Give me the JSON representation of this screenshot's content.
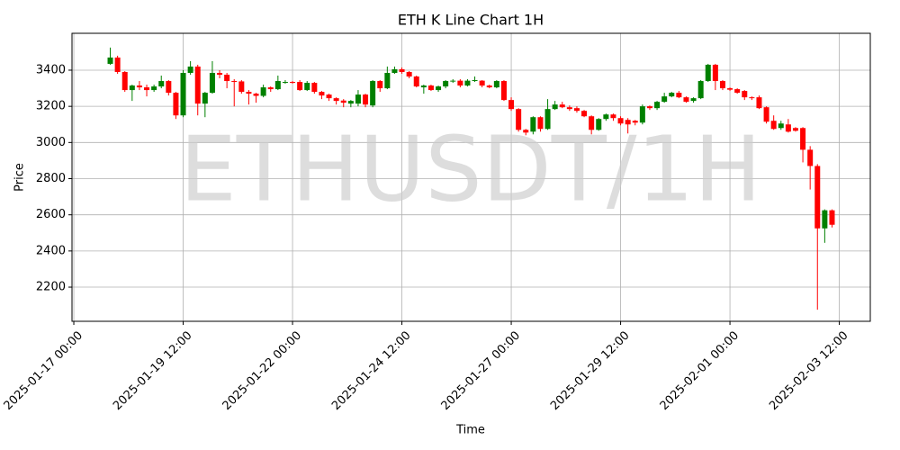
{
  "chart_data": {
    "type": "candlestick",
    "title": "ETH K Line Chart 1H",
    "watermark": "ETHUSDT/1H",
    "x_label": "Time",
    "y_label": "Price",
    "grid": true,
    "up_color": "#008000",
    "down_color": "#ff0000",
    "xlim": [
      "2025-01-16 23:00",
      "2025-02-04 05:00"
    ],
    "xticks": [
      "2025-01-17 00:00",
      "2025-01-19 12:00",
      "2025-01-22 00:00",
      "2025-01-24 12:00",
      "2025-01-27 00:00",
      "2025-01-29 12:00",
      "2025-02-01 00:00",
      "2025-02-03 12:00"
    ],
    "ylim": [
      2011,
      3604
    ],
    "yticks": [
      2200,
      2400,
      2600,
      2800,
      3000,
      3200,
      3400
    ],
    "x": [
      "2025-01-17 20:00",
      "2025-01-18 00:00",
      "2025-01-18 04:00",
      "2025-01-18 08:00",
      "2025-01-18 12:00",
      "2025-01-18 16:00",
      "2025-01-18 20:00",
      "2025-01-19 00:00",
      "2025-01-19 04:00",
      "2025-01-19 08:00",
      "2025-01-19 12:00",
      "2025-01-19 16:00",
      "2025-01-19 20:00",
      "2025-01-20 00:00",
      "2025-01-20 04:00",
      "2025-01-20 08:00",
      "2025-01-20 12:00",
      "2025-01-20 16:00",
      "2025-01-20 20:00",
      "2025-01-21 00:00",
      "2025-01-21 04:00",
      "2025-01-21 08:00",
      "2025-01-21 12:00",
      "2025-01-21 16:00",
      "2025-01-21 20:00",
      "2025-01-22 00:00",
      "2025-01-22 04:00",
      "2025-01-22 08:00",
      "2025-01-22 12:00",
      "2025-01-22 16:00",
      "2025-01-22 20:00",
      "2025-01-23 00:00",
      "2025-01-23 04:00",
      "2025-01-23 08:00",
      "2025-01-23 12:00",
      "2025-01-23 16:00",
      "2025-01-23 20:00",
      "2025-01-24 00:00",
      "2025-01-24 04:00",
      "2025-01-24 08:00",
      "2025-01-24 12:00",
      "2025-01-24 16:00",
      "2025-01-24 20:00",
      "2025-01-25 00:00",
      "2025-01-25 04:00",
      "2025-01-25 08:00",
      "2025-01-25 12:00",
      "2025-01-25 16:00",
      "2025-01-25 20:00",
      "2025-01-26 00:00",
      "2025-01-26 04:00",
      "2025-01-26 08:00",
      "2025-01-26 12:00",
      "2025-01-26 16:00",
      "2025-01-26 20:00",
      "2025-01-27 00:00",
      "2025-01-27 04:00",
      "2025-01-27 08:00",
      "2025-01-27 12:00",
      "2025-01-27 16:00",
      "2025-01-27 20:00",
      "2025-01-28 00:00",
      "2025-01-28 04:00",
      "2025-01-28 08:00",
      "2025-01-28 12:00",
      "2025-01-28 16:00",
      "2025-01-28 20:00",
      "2025-01-29 00:00",
      "2025-01-29 04:00",
      "2025-01-29 08:00",
      "2025-01-29 12:00",
      "2025-01-29 16:00",
      "2025-01-29 20:00",
      "2025-01-30 00:00",
      "2025-01-30 04:00",
      "2025-01-30 08:00",
      "2025-01-30 12:00",
      "2025-01-30 16:00",
      "2025-01-30 20:00",
      "2025-01-31 00:00",
      "2025-01-31 04:00",
      "2025-01-31 08:00",
      "2025-01-31 12:00",
      "2025-01-31 16:00",
      "2025-01-31 20:00",
      "2025-02-01 00:00",
      "2025-02-01 04:00",
      "2025-02-01 08:00",
      "2025-02-01 12:00",
      "2025-02-01 16:00",
      "2025-02-01 20:00",
      "2025-02-02 00:00",
      "2025-02-02 04:00",
      "2025-02-02 08:00",
      "2025-02-02 12:00",
      "2025-02-02 16:00",
      "2025-02-02 20:00",
      "2025-02-03 00:00",
      "2025-02-03 04:00",
      "2025-02-03 08:00"
    ],
    "open": [
      3435,
      3470,
      3390,
      3290,
      3315,
      3305,
      3290,
      3310,
      3340,
      3275,
      3150,
      3385,
      3420,
      3215,
      3275,
      3385,
      3375,
      3340,
      3338,
      3280,
      3270,
      3258,
      3305,
      3295,
      3330,
      3335,
      3335,
      3290,
      3330,
      3280,
      3265,
      3245,
      3232,
      3215,
      3215,
      3265,
      3205,
      3340,
      3300,
      3385,
      3405,
      3390,
      3365,
      3305,
      3315,
      3290,
      3310,
      3338,
      3342,
      3315,
      3340,
      3342,
      3315,
      3305,
      3340,
      3235,
      3185,
      3070,
      3060,
      3140,
      3075,
      3185,
      3210,
      3195,
      3190,
      3175,
      3145,
      3070,
      3130,
      3155,
      3135,
      3125,
      3120,
      3110,
      3200,
      3190,
      3225,
      3255,
      3275,
      3250,
      3230,
      3245,
      3340,
      3430,
      3340,
      3300,
      3295,
      3285,
      3250,
      3250,
      3195,
      3120,
      3080,
      3100,
      3080,
      3080,
      2960,
      2870,
      2525,
      2625
    ],
    "high": [
      3525,
      3480,
      3395,
      3320,
      3340,
      3320,
      3320,
      3370,
      3345,
      3280,
      3400,
      3450,
      3430,
      3280,
      3450,
      3400,
      3385,
      3350,
      3345,
      3290,
      3275,
      3320,
      3310,
      3370,
      3345,
      3340,
      3345,
      3340,
      3335,
      3285,
      3270,
      3250,
      3240,
      3235,
      3290,
      3270,
      3345,
      3345,
      3420,
      3420,
      3415,
      3395,
      3370,
      3320,
      3320,
      3315,
      3345,
      3350,
      3350,
      3350,
      3365,
      3345,
      3320,
      3345,
      3345,
      3250,
      3190,
      3075,
      3145,
      3145,
      3240,
      3230,
      3225,
      3205,
      3200,
      3180,
      3150,
      3135,
      3160,
      3160,
      3145,
      3135,
      3125,
      3210,
      3205,
      3230,
      3275,
      3280,
      3285,
      3255,
      3250,
      3345,
      3435,
      3435,
      3345,
      3305,
      3300,
      3290,
      3255,
      3260,
      3200,
      3150,
      3120,
      3130,
      3085,
      3085,
      2980,
      2880,
      2630,
      2630
    ],
    "low": [
      3430,
      3380,
      3280,
      3230,
      3290,
      3255,
      3280,
      3300,
      3260,
      3130,
      3140,
      3375,
      3150,
      3140,
      3270,
      3355,
      3300,
      3200,
      3270,
      3210,
      3220,
      3250,
      3280,
      3290,
      3325,
      3325,
      3285,
      3285,
      3270,
      3240,
      3230,
      3210,
      3195,
      3195,
      3200,
      3195,
      3195,
      3280,
      3295,
      3380,
      3380,
      3355,
      3305,
      3270,
      3285,
      3280,
      3300,
      3330,
      3305,
      3310,
      3335,
      3305,
      3300,
      3300,
      3230,
      3175,
      3060,
      3040,
      3045,
      3060,
      3070,
      3180,
      3190,
      3175,
      3165,
      3140,
      3045,
      3065,
      3120,
      3120,
      3095,
      3050,
      3095,
      3100,
      3180,
      3180,
      3220,
      3250,
      3245,
      3220,
      3220,
      3240,
      3335,
      3290,
      3290,
      3285,
      3270,
      3235,
      3235,
      3185,
      3105,
      3070,
      3070,
      3055,
      3060,
      2890,
      2740,
      2075,
      2445,
      2530
    ],
    "close": [
      3470,
      3390,
      3290,
      3315,
      3305,
      3290,
      3310,
      3340,
      3275,
      3150,
      3385,
      3420,
      3215,
      3275,
      3385,
      3375,
      3340,
      3338,
      3280,
      3270,
      3258,
      3305,
      3295,
      3340,
      3335,
      3330,
      3290,
      3330,
      3280,
      3260,
      3245,
      3230,
      3220,
      3230,
      3265,
      3210,
      3340,
      3300,
      3385,
      3405,
      3390,
      3365,
      3310,
      3315,
      3290,
      3310,
      3340,
      3342,
      3315,
      3342,
      3345,
      3315,
      3305,
      3340,
      3235,
      3185,
      3070,
      3055,
      3140,
      3075,
      3185,
      3210,
      3195,
      3185,
      3175,
      3145,
      3070,
      3130,
      3155,
      3135,
      3105,
      3100,
      3110,
      3200,
      3190,
      3225,
      3255,
      3275,
      3250,
      3225,
      3245,
      3340,
      3430,
      3340,
      3300,
      3292,
      3275,
      3250,
      3245,
      3190,
      3115,
      3075,
      3105,
      3060,
      3065,
      2960,
      2870,
      2525,
      2625,
      2545
    ]
  }
}
